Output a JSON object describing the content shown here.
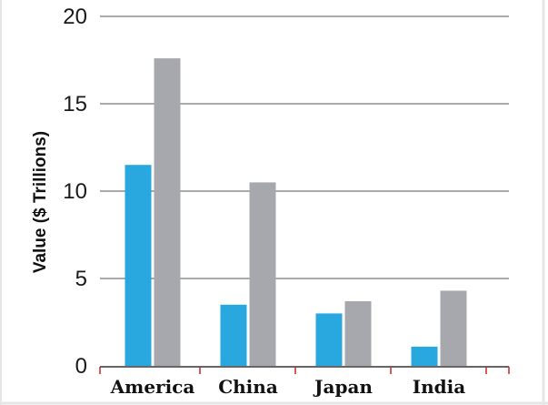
{
  "chart_data": {
    "type": "bar",
    "title": "",
    "xlabel": "",
    "ylabel": "Value ($ Trillions)",
    "categories": [
      "America",
      "China",
      "Japan",
      "India"
    ],
    "series": [
      {
        "values": [
          11.5,
          3.5,
          3.0,
          1.1
        ]
      },
      {
        "values": [
          17.6,
          10.5,
          3.7,
          4.3
        ]
      }
    ],
    "ylim": [
      0,
      20
    ],
    "yticks": [
      "0",
      "5",
      "10",
      "15",
      "20"
    ],
    "grid": true,
    "legend": "none",
    "colors": {
      "series": [
        "#29a8e0",
        "#a7a8ad"
      ],
      "gridline": "#555555",
      "baseline": "#666666",
      "category_divider": "#cc2222",
      "frame": "#e6e6e6"
    }
  }
}
